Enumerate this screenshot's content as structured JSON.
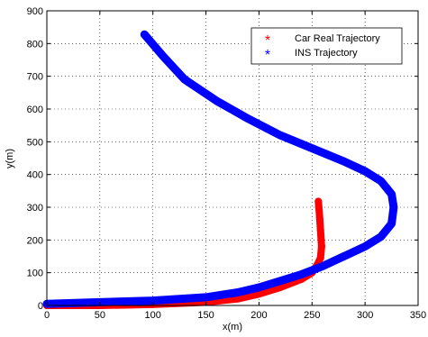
{
  "chart_data": {
    "type": "scatter",
    "xlabel": "x(m)",
    "ylabel": "y(m)",
    "xlim": [
      0,
      350
    ],
    "ylim": [
      0,
      900
    ],
    "xticks": [
      0,
      50,
      100,
      150,
      200,
      250,
      300,
      350
    ],
    "yticks": [
      0,
      100,
      200,
      300,
      400,
      500,
      600,
      700,
      800,
      900
    ],
    "grid": true,
    "legend_position": "top-right",
    "marker": "*",
    "series": [
      {
        "name": "Car Real Trajectory",
        "color": "#ff0000",
        "points": [
          [
            0,
            0
          ],
          [
            50,
            0
          ],
          [
            100,
            3
          ],
          [
            150,
            10
          ],
          [
            180,
            20
          ],
          [
            200,
            35
          ],
          [
            220,
            55
          ],
          [
            240,
            80
          ],
          [
            250,
            100
          ],
          [
            255,
            125
          ],
          [
            258,
            145
          ],
          [
            259,
            180
          ],
          [
            258,
            230
          ],
          [
            257,
            280
          ],
          [
            256,
            318
          ]
        ]
      },
      {
        "name": "INS Trajectory",
        "color": "#0000ff",
        "points": [
          [
            0,
            5
          ],
          [
            50,
            10
          ],
          [
            100,
            15
          ],
          [
            150,
            25
          ],
          [
            180,
            40
          ],
          [
            200,
            55
          ],
          [
            220,
            75
          ],
          [
            240,
            95
          ],
          [
            260,
            120
          ],
          [
            280,
            150
          ],
          [
            300,
            180
          ],
          [
            315,
            210
          ],
          [
            325,
            250
          ],
          [
            327,
            300
          ],
          [
            325,
            340
          ],
          [
            315,
            380
          ],
          [
            300,
            410
          ],
          [
            280,
            440
          ],
          [
            250,
            480
          ],
          [
            220,
            520
          ],
          [
            190,
            570
          ],
          [
            160,
            625
          ],
          [
            130,
            690
          ],
          [
            110,
            760
          ],
          [
            92,
            828
          ]
        ]
      }
    ]
  }
}
